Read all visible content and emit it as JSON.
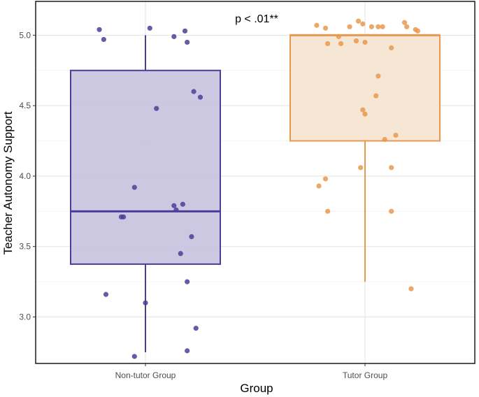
{
  "chart_data": {
    "type": "boxplot",
    "title": "",
    "annotation": "p < .01**",
    "xlabel": "Group",
    "ylabel": "Teacher Autonomy Support",
    "ylim": [
      2.67,
      5.24
    ],
    "yticks": [
      3.0,
      3.5,
      4.0,
      4.5,
      5.0
    ],
    "ytick_labels": [
      "3.0",
      "3.5",
      "4.0",
      "4.5",
      "5.0"
    ],
    "grid": true,
    "legend": "none",
    "categories": [
      "Non-tutor Group",
      "Tutor Group"
    ],
    "series": [
      {
        "name": "Non-tutor Group",
        "color": "#4b3e96",
        "fill": "#c6c2df",
        "box": {
          "whisker_low": 2.75,
          "q1": 3.375,
          "median": 3.75,
          "q3": 4.75,
          "whisker_high": 5.0
        },
        "points": [
          {
            "x": -0.21,
            "y": 5.04
          },
          {
            "x": -0.19,
            "y": 4.97
          },
          {
            "x": 0.02,
            "y": 5.05
          },
          {
            "x": 0.13,
            "y": 4.99
          },
          {
            "x": 0.18,
            "y": 5.03
          },
          {
            "x": 0.19,
            "y": 4.95
          },
          {
            "x": 0.22,
            "y": 4.6
          },
          {
            "x": 0.25,
            "y": 4.56
          },
          {
            "x": 0.05,
            "y": 4.48
          },
          {
            "x": -0.05,
            "y": 3.92
          },
          {
            "x": 0.13,
            "y": 3.79
          },
          {
            "x": 0.17,
            "y": 3.8
          },
          {
            "x": 0.14,
            "y": 3.76
          },
          {
            "x": -0.11,
            "y": 3.71
          },
          {
            "x": -0.1,
            "y": 3.71
          },
          {
            "x": 0.21,
            "y": 3.57
          },
          {
            "x": 0.16,
            "y": 3.45
          },
          {
            "x": 0.19,
            "y": 3.25
          },
          {
            "x": -0.18,
            "y": 3.16
          },
          {
            "x": 0.0,
            "y": 3.1
          },
          {
            "x": 0.23,
            "y": 2.92
          },
          {
            "x": 0.19,
            "y": 2.76
          },
          {
            "x": -0.05,
            "y": 2.72
          }
        ]
      },
      {
        "name": "Tutor Group",
        "color": "#e8994f",
        "fill": "#f5e3cf",
        "box": {
          "whisker_low": 3.25,
          "q1": 4.25,
          "median": 5.0,
          "q3": 5.0,
          "whisker_high": 5.0
        },
        "points": [
          {
            "x": -0.22,
            "y": 5.07
          },
          {
            "x": -0.18,
            "y": 5.05
          },
          {
            "x": -0.07,
            "y": 5.06
          },
          {
            "x": -0.03,
            "y": 5.1
          },
          {
            "x": -0.01,
            "y": 5.08
          },
          {
            "x": 0.03,
            "y": 5.06
          },
          {
            "x": 0.06,
            "y": 5.06
          },
          {
            "x": 0.08,
            "y": 5.06
          },
          {
            "x": 0.18,
            "y": 5.09
          },
          {
            "x": 0.19,
            "y": 5.06
          },
          {
            "x": 0.23,
            "y": 5.04
          },
          {
            "x": 0.24,
            "y": 5.03
          },
          {
            "x": -0.12,
            "y": 4.99
          },
          {
            "x": -0.04,
            "y": 4.96
          },
          {
            "x": -0.17,
            "y": 4.94
          },
          {
            "x": -0.11,
            "y": 4.94
          },
          {
            "x": 0.0,
            "y": 4.95
          },
          {
            "x": 0.12,
            "y": 4.91
          },
          {
            "x": 0.06,
            "y": 4.71
          },
          {
            "x": 0.05,
            "y": 4.57
          },
          {
            "x": -0.01,
            "y": 4.47
          },
          {
            "x": 0.0,
            "y": 4.44
          },
          {
            "x": 0.14,
            "y": 4.29
          },
          {
            "x": 0.09,
            "y": 4.26
          },
          {
            "x": -0.02,
            "y": 4.06
          },
          {
            "x": 0.12,
            "y": 4.06
          },
          {
            "x": -0.18,
            "y": 3.98
          },
          {
            "x": -0.21,
            "y": 3.93
          },
          {
            "x": -0.17,
            "y": 3.75
          },
          {
            "x": 0.12,
            "y": 3.75
          },
          {
            "x": 0.21,
            "y": 3.2
          }
        ]
      }
    ]
  }
}
